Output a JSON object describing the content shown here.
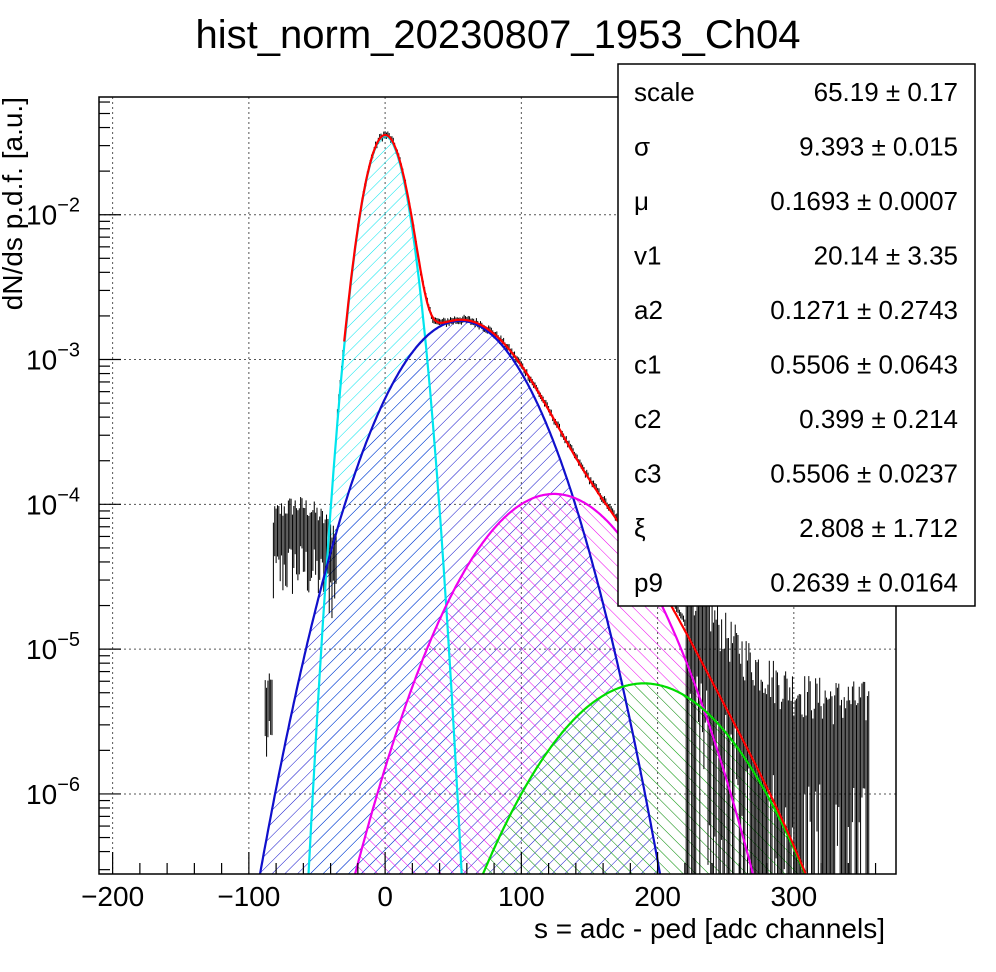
{
  "chart_data": {
    "type": "line",
    "title": "hist_norm_20230807_1953_Ch04",
    "xlabel": "s = adc - ped [adc channels]",
    "ylabel": "dN/ds p.d.f. [a.u.]",
    "xlim": [
      -210,
      375
    ],
    "ylim": [
      2.8e-07,
      0.065
    ],
    "ylog": true,
    "grid": true,
    "x_ticks": [
      {
        "value": -200,
        "label": "−200"
      },
      {
        "value": -100,
        "label": "−100"
      },
      {
        "value": 0,
        "label": "0"
      },
      {
        "value": 100,
        "label": "100"
      },
      {
        "value": 200,
        "label": "200"
      },
      {
        "value": 300,
        "label": "300"
      }
    ],
    "y_ticks": [
      {
        "value": 1e-06,
        "base": "10",
        "exp": "−6"
      },
      {
        "value": 1e-05,
        "base": "10",
        "exp": "−5"
      },
      {
        "value": 0.0001,
        "base": "10",
        "exp": "−4"
      },
      {
        "value": 0.001,
        "base": "10",
        "exp": "−3"
      },
      {
        "value": 0.01,
        "base": "10",
        "exp": "−2"
      }
    ],
    "components": [
      {
        "color": "#00e5ee",
        "amplitude": 0.035,
        "mean": 0,
        "sigma": 11.6,
        "hatch": "diag-up"
      },
      {
        "color": "#1010cc",
        "amplitude": 0.00185,
        "mean": 55,
        "sigma": 35,
        "hatch": "diag-up"
      },
      {
        "color": "#ee00ee",
        "amplitude": 0.000118,
        "mean": 124,
        "sigma": 42,
        "hatch": "diag-down"
      },
      {
        "color": "#00dd00",
        "amplitude": 5.8e-06,
        "mean": 190,
        "sigma": 48,
        "hatch": "diag-down"
      }
    ],
    "total_fit_color": "#ff0000",
    "data_color": "#000000",
    "stats_box": [
      {
        "name": "scale",
        "value": "65.19 ± 0.17"
      },
      {
        "name": "σ",
        "value": "9.393 ± 0.015"
      },
      {
        "name": "μ",
        "value": "0.1693 ± 0.0007"
      },
      {
        "name": "v1",
        "value": "20.14 ± 3.35"
      },
      {
        "name": "a2",
        "value": "0.1271 ± 0.2743"
      },
      {
        "name": "c1",
        "value": "0.5506 ± 0.0643"
      },
      {
        "name": "c2",
        "value": "0.399 ± 0.214"
      },
      {
        "name": "c3",
        "value": "0.5506 ± 0.0237"
      },
      {
        "name": "ξ",
        "value": "2.808 ± 1.712"
      },
      {
        "name": "p9",
        "value": "0.2639 ± 0.0164"
      }
    ]
  }
}
